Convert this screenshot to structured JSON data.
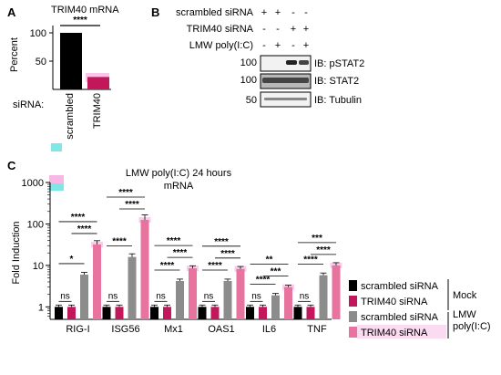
{
  "panel_labels": {
    "a": "A",
    "b": "B",
    "c": "C"
  },
  "colors": {
    "scrambled_mock": "#000000",
    "trim40_mock": "#c2185b",
    "scrambled_lmw": "#8c8c8c",
    "trim40_lmw": "#e8739e",
    "highlight_pink": "#f7b8e3",
    "highlight_cyan": "#7fe7e7"
  },
  "chart_data": [
    {
      "type": "bar",
      "title": "TRIM40 mRNA",
      "ylabel": "Percent",
      "xlabel": "siRNA:",
      "categories": [
        "scrambled",
        "TRIM40"
      ],
      "values": [
        100,
        22
      ],
      "yticks": [
        "100",
        "50"
      ],
      "ylim": [
        0,
        110
      ],
      "significance": "****"
    },
    {
      "type": "bar",
      "title": "LMW poly(I:C) 24 hours",
      "subtitle": "mRNA",
      "ylabel": "Fold Induction",
      "yscale": "log",
      "ylim": [
        0.5,
        1000
      ],
      "yticks": [
        "1000",
        "100",
        "10",
        "1"
      ],
      "categories": [
        "RIG-I",
        "ISG56",
        "Mx1",
        "OAS1",
        "IL6",
        "TNF"
      ],
      "series": [
        {
          "name": "scrambled siRNA",
          "values": [
            1,
            1,
            1,
            1,
            1,
            1
          ]
        },
        {
          "name": "TRIM40 siRNA",
          "values": [
            1,
            1,
            1,
            1,
            1,
            1
          ]
        },
        {
          "name": "scrambled siRNA",
          "values": [
            6,
            16,
            4.2,
            4.2,
            1.9,
            5.8
          ]
        },
        {
          "name": "TRIM40 siRNA",
          "values": [
            32,
            125,
            8.5,
            8.2,
            3.0,
            10
          ]
        }
      ],
      "group_labels": [
        "Mock",
        "LMW poly(I:C)"
      ],
      "significance": [
        {
          "low": "ns",
          "a": "*",
          "b": "****",
          "c": "****"
        },
        {
          "low": "ns",
          "a": "****",
          "b": "****",
          "c": "****"
        },
        {
          "low": "ns",
          "a": "****",
          "b": "****",
          "c": "****"
        },
        {
          "low": "ns",
          "a": "****",
          "b": "****",
          "c": "****"
        },
        {
          "low": "ns",
          "a": "****",
          "b": "***",
          "c": "**"
        },
        {
          "low": "ns",
          "a": "****",
          "b": "****",
          "c": "***"
        }
      ]
    }
  ],
  "western_blot": {
    "rows": [
      {
        "label": "scrambled siRNA",
        "marks": [
          "+",
          "+",
          "-",
          "-"
        ]
      },
      {
        "label": "TRIM40 siRNA",
        "marks": [
          "-",
          "-",
          "+",
          "+"
        ]
      },
      {
        "label": "LMW poly(I:C)",
        "marks": [
          "-",
          "+",
          "-",
          "+"
        ]
      }
    ],
    "markers": [
      "100",
      "100",
      "50"
    ],
    "bands": [
      "IB: pSTAT2",
      "IB: STAT2",
      "IB: Tubulin"
    ]
  }
}
